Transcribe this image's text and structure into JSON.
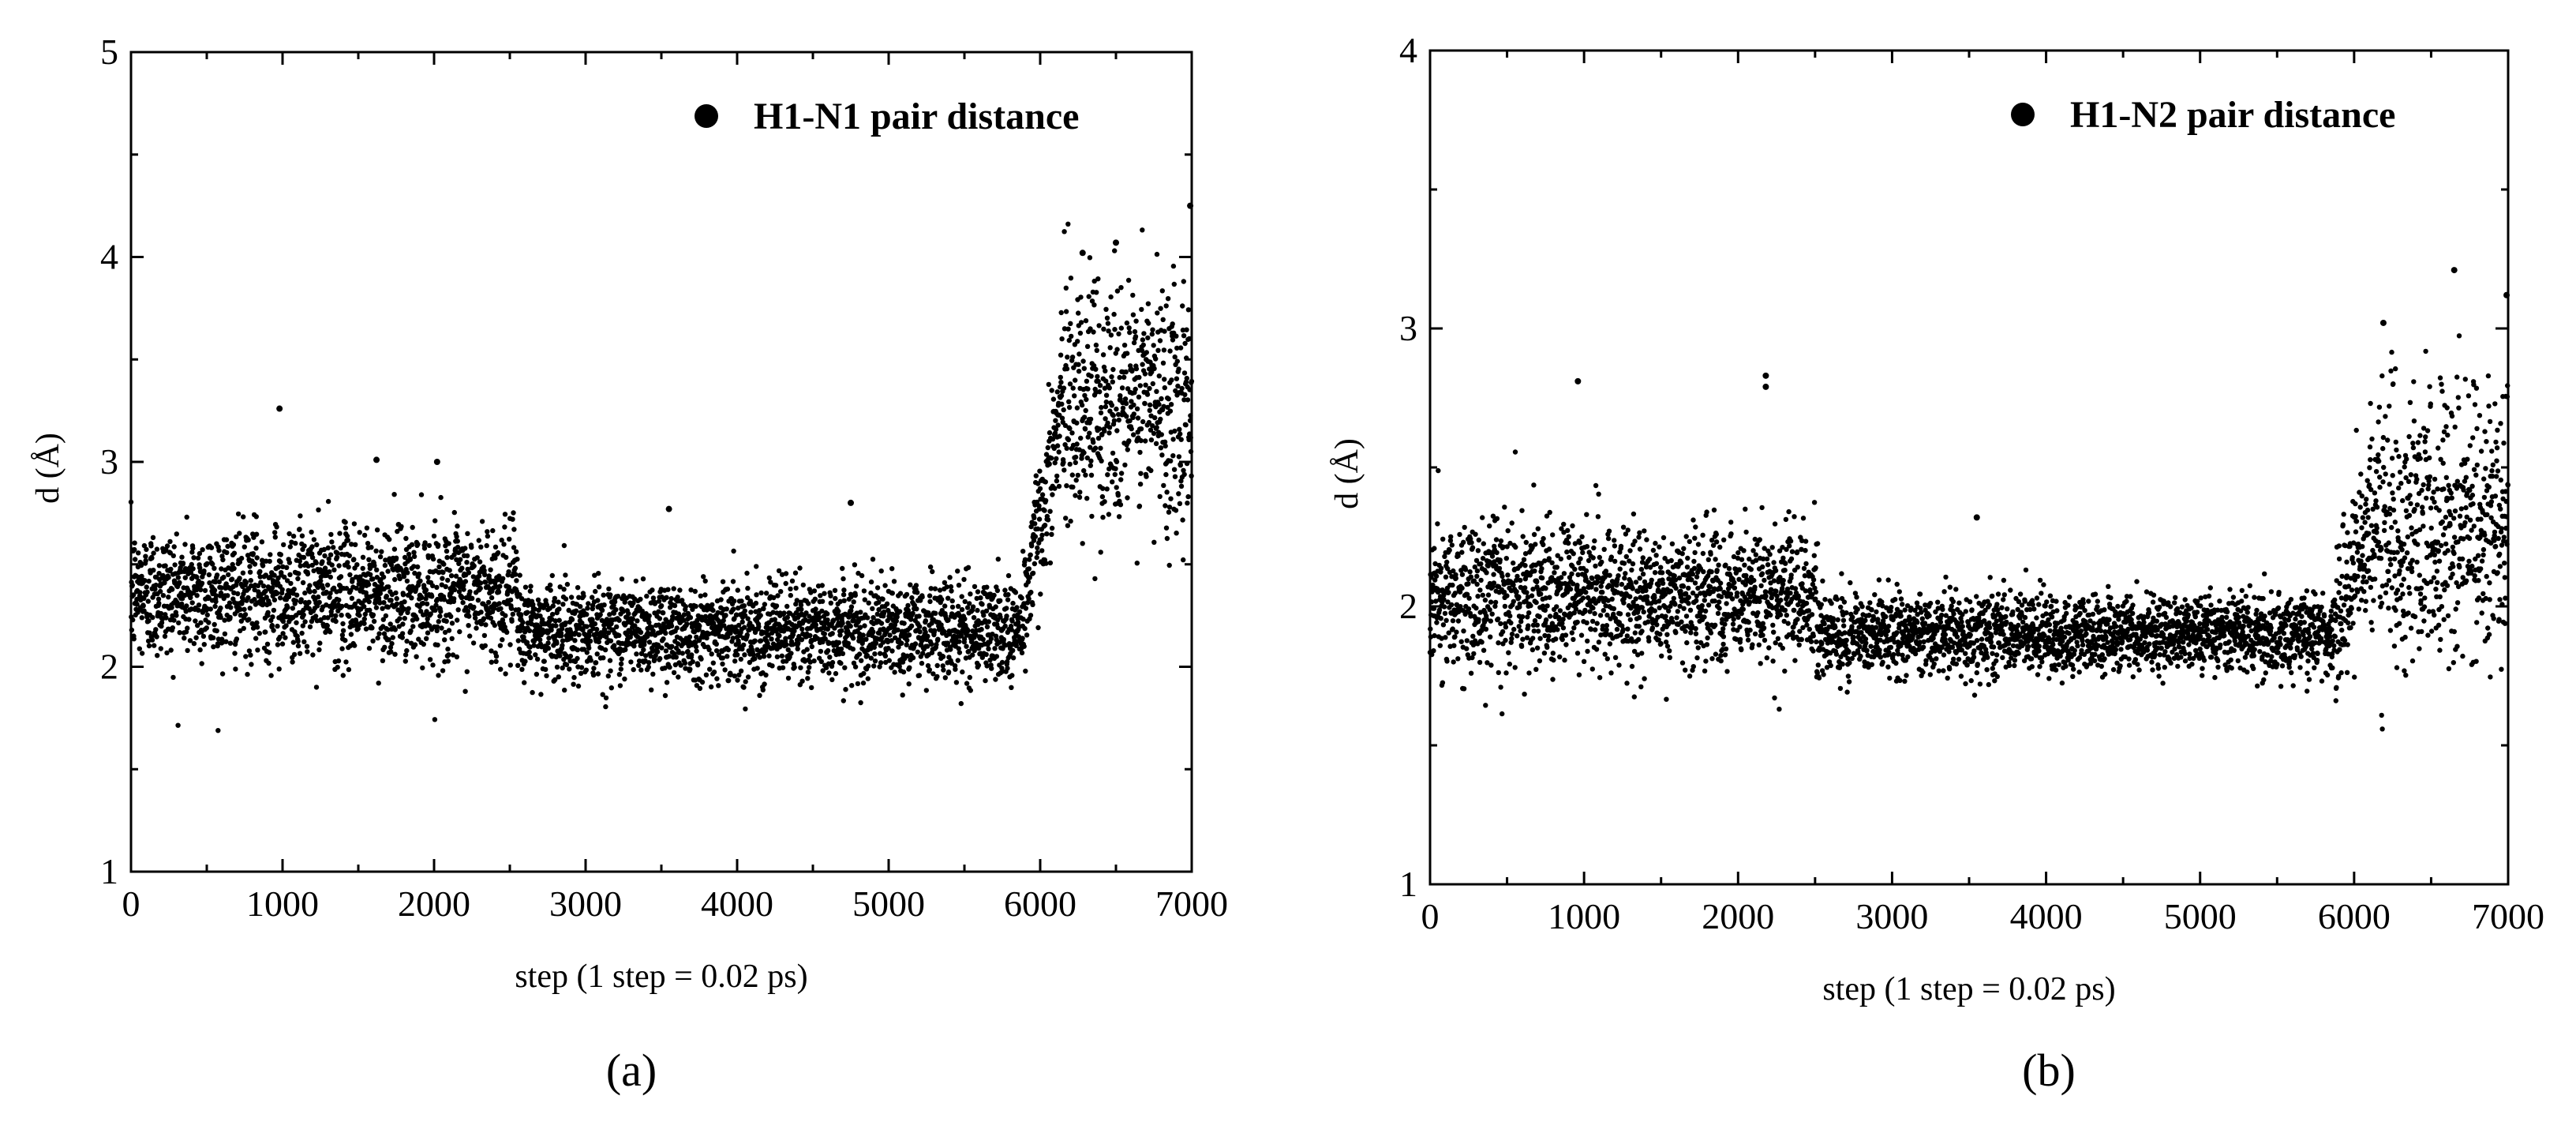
{
  "chart_data": [
    {
      "type": "scatter",
      "panel_label": "(a)",
      "legend": "H1-N1 pair distance",
      "legend_position": "top-right",
      "xlabel": "step (1 step = 0.02 ps)",
      "ylabel": "d (Å)",
      "xlim": [
        0,
        7000
      ],
      "ylim": [
        1,
        5
      ],
      "xticks": [
        0,
        1000,
        2000,
        3000,
        4000,
        5000,
        6000,
        7000
      ],
      "yticks": [
        1,
        2,
        3,
        4,
        5
      ],
      "grid": false,
      "color": "#000000",
      "segments": [
        {
          "x_start": 0,
          "x_end": 2550,
          "mean": 2.36,
          "spread": 0.16
        },
        {
          "x_start": 2550,
          "x_end": 5880,
          "mean": 2.18,
          "spread": 0.12
        },
        {
          "x_start": 5880,
          "x_end": 6150,
          "mean_start": 2.25,
          "mean_end": 3.3,
          "spread": 0.18
        },
        {
          "x_start": 6150,
          "x_end": 7000,
          "mean": 3.3,
          "spread": 0.3
        }
      ],
      "outliers": [
        {
          "x": 980,
          "y": 3.26
        },
        {
          "x": 1620,
          "y": 3.01
        },
        {
          "x": 2020,
          "y": 3.0
        },
        {
          "x": 3550,
          "y": 2.77
        },
        {
          "x": 4750,
          "y": 2.8
        },
        {
          "x": 6500,
          "y": 4.07
        },
        {
          "x": 6280,
          "y": 4.02
        },
        {
          "x": 6990,
          "y": 4.25
        }
      ]
    },
    {
      "type": "scatter",
      "panel_label": "(b)",
      "legend": "H1-N2 pair distance",
      "legend_position": "top-right",
      "xlabel": "step (1 step = 0.02 ps)",
      "ylabel": "d (Å)",
      "xlim": [
        0,
        7000
      ],
      "ylim": [
        1,
        4
      ],
      "xticks": [
        0,
        1000,
        2000,
        3000,
        4000,
        5000,
        6000,
        7000
      ],
      "yticks": [
        1,
        2,
        3,
        4
      ],
      "grid": false,
      "color": "#000000",
      "segments": [
        {
          "x_start": 0,
          "x_end": 2520,
          "mean": 2.03,
          "spread": 0.13
        },
        {
          "x_start": 2520,
          "x_end": 5880,
          "mean": 1.9,
          "spread": 0.07
        },
        {
          "x_start": 5880,
          "x_end": 6100,
          "mean_start": 1.95,
          "mean_end": 2.3,
          "spread": 0.15
        },
        {
          "x_start": 6100,
          "x_end": 7000,
          "mean": 2.3,
          "spread": 0.25
        }
      ],
      "outliers": [
        {
          "x": 960,
          "y": 2.81
        },
        {
          "x": 2180,
          "y": 2.83
        },
        {
          "x": 2180,
          "y": 2.79
        },
        {
          "x": 3550,
          "y": 2.32
        },
        {
          "x": 6650,
          "y": 3.21
        },
        {
          "x": 6190,
          "y": 3.02
        },
        {
          "x": 6990,
          "y": 3.12
        }
      ]
    }
  ]
}
